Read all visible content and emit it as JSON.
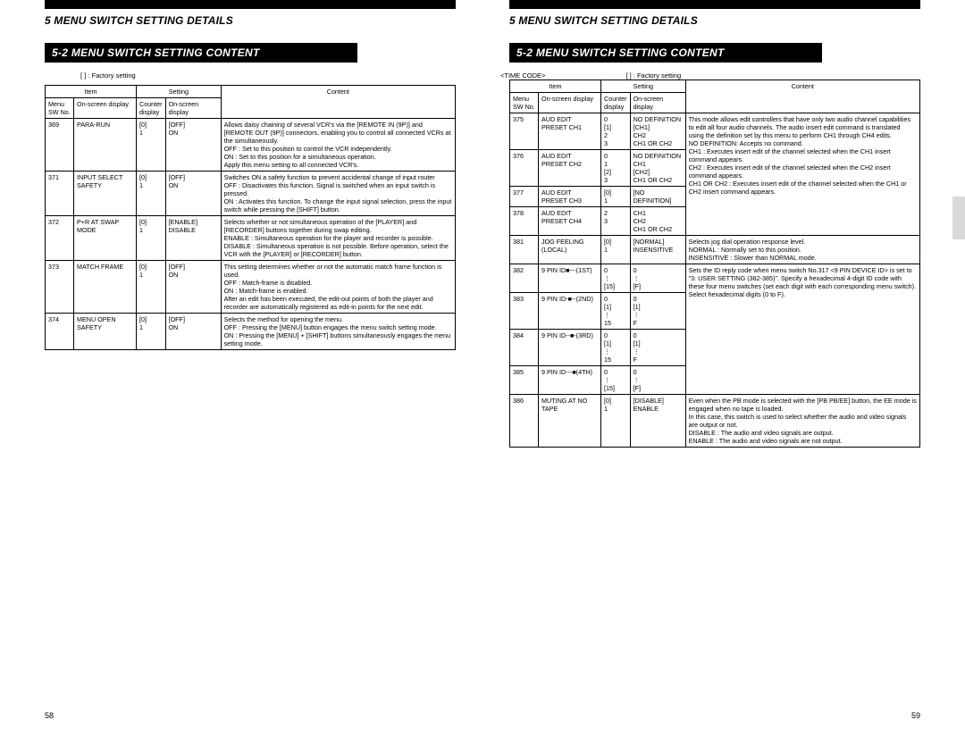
{
  "left": {
    "chapter": "5 MENU SWITCH SETTING DETAILS",
    "section": "5-2 MENU SWITCH SETTING CONTENT",
    "factory_note": "[ ] : Factory setting",
    "headers": {
      "item_grp": "Item",
      "setting_grp": "Setting",
      "menu_sw": "Menu SW No.",
      "onscreen1": "On-screen display",
      "counter": "Counter display",
      "onscreen2": "On-screen display",
      "content": "Content"
    },
    "rows": [
      {
        "no": "369",
        "osd": "PARA-RUN",
        "cnt": "[0]\n1",
        "set": "[OFF]\nON",
        "content": "Allows daisy chaining of several VCR's via the [REMOTE IN (9P)] and [REMOTE OUT (9P)] connectors, enabling you to control all connected VCRs at the simultaneously.\nOFF : Set to this position to control the VCR independently.\nON  : Set to this position for a simultaneous operation.\nApply this menu setting to all connected VCR's."
      },
      {
        "no": "371",
        "osd": "INPUT SELECT SAFETY",
        "cnt": "[0]\n1",
        "set": "[OFF]\nON",
        "content": "Switches ON a safety function to prevent accidental change of input router\nOFF : Disactivates this function.  Signal is switched when an input switch is pressed.\nON  : Activates this function.  To change the input signal selection, press the input switch while pressing the [SHIFT] button."
      },
      {
        "no": "372",
        "osd": "P+R AT SWAP MODE",
        "cnt": "[0]\n1",
        "set": "[ENABLE]\nDISABLE",
        "content": "Selects whether or not simultaneous operation of the [PLAYER] and [RECORDER] buttons together during swap editing.\nENABLE  : Simultaneous operation for the player and recorder is possible.\nDISABLE : Simultaneous operation is not possible. Before operation, select the VCR with the [PLAYER] or [RECORDER] button."
      },
      {
        "no": "373",
        "osd": "MATCH FRAME",
        "cnt": "[0]\n1",
        "set": "[OFF]\nON",
        "content": "This setting determines whether or not the automatic match frame function is used.\nOFF : Match-frame is disabled.\nON  : Match-frame is enabled.\nAfter an edit has been executed, the edit-out points of both the player and recorder are automatically registered as edit-in points for the next edit."
      },
      {
        "no": "374",
        "osd": "MENU OPEN SAFETY",
        "cnt": "[0]\n1",
        "set": "[OFF]\nON",
        "content": "Selects the method for opening the menu.\nOFF : Pressing the [MENU] button engages the menu switch setting mode.\nON  : Pressing the [MENU] + [SHIFT] buttons simultaneously engages the menu setting mode."
      }
    ],
    "page_num": "58"
  },
  "right": {
    "chapter": "5 MENU SWITCH SETTING DETAILS",
    "section": "5-2 MENU SWITCH SETTING CONTENT",
    "timecode": "<TIME CODE>",
    "factory_note": "[ ] : Factory setting",
    "headers": {
      "item_grp": "Item",
      "setting_grp": "Setting",
      "menu_sw": "Menu SW No.",
      "onscreen1": "On-screen display",
      "counter": "Counter display",
      "onscreen2": "On-screen display",
      "content": "Content"
    },
    "rows": [
      {
        "no": "375",
        "osd": "AUD EDIT PRESET CH1",
        "cnt": "0\n[1]\n2\n3",
        "set": "NO DEFINITION\n[CH1]\nCH2\nCH1 OR CH2",
        "content": "This mode allows edit controllers that have only two audio channel capabilities to edit all four audio channels.  The audio insert edit command is translated using the definition set by this menu to perform CH1 through CH4 edits.\nNO DEFINITION: Accepts no command.\nCH1 : Executes insert edit of the channel selected when the CH1 insert command appears.\nCH2 : Executes insert edit of the channel selected when the CH2 insert command appears.\nCH1 OR CH2 : Executes insert edit of the channel selected when the CH1 or CH2 insert command appears.",
        "span": 4
      },
      {
        "no": "376",
        "osd": "AUD EDIT PRESET CH2",
        "cnt": "0\n1\n[2]\n3",
        "set": "NO DEFINITION\nCH1\n[CH2]\nCH1 OR CH2"
      },
      {
        "no": "377",
        "osd": "AUD EDIT PRESET CH3",
        "cnt": "[0]\n1",
        "set": "[NO DEFINITION]"
      },
      {
        "no": "378",
        "osd": "AUD EDIT PRESET CH4",
        "cnt": "2\n3",
        "set": "CH1\nCH2\nCH1 OR CH2"
      },
      {
        "no": "381",
        "osd": "JOG FEELING (LOCAL)",
        "cnt": "[0]\n1",
        "set": "[NORMAL]\nINSENSITIVE",
        "content": "Selects jog dial operation response level.\nNORMAL         : Normally set to this position.\nINSENSITIVE : Slower than NORMAL mode."
      },
      {
        "no": "382",
        "osd": "9 PIN ID■---(1ST)",
        "cnt": "0\n⋮\n[15]",
        "set": "0\n⋮\n[F]",
        "content": "Sets the ID reply code when menu switch No.317 <9 PIN DEVICE ID> is set to \"3: USER SETTING (382-385)\". Specify a hexadecimal 4-digit ID code with these four menu switches (set each digit with each corresponding menu switch). Select hexadecimal digits (0 to F).",
        "span": 4
      },
      {
        "no": "383",
        "osd": "9 PIN ID-■--(2ND)",
        "cnt": "0\n[1]\n⋮\n15",
        "set": "0\n[1]\n⋮\nF"
      },
      {
        "no": "384",
        "osd": "9 PIN ID--■-(3RD)",
        "cnt": "0\n[1]\n⋮\n15",
        "set": "0\n[1]\n⋮\nF"
      },
      {
        "no": "385",
        "osd": "9 PIN ID---■(4TH)",
        "cnt": "0\n⋮\n[15]",
        "set": "0\n⋮\n[F]"
      },
      {
        "no": "386",
        "osd": "MUTING AT NO TAPE",
        "cnt": "[0]\n1",
        "set": "[DISABLE]\nENABLE",
        "content": "Even when the PB mode is selected with the [PB PB/EE] button, the EE mode is engaged when no tape is loaded.\nIn this case, this switch is used to select whether the audio and video signals are output or not.\nDISABLE : The audio and video signals are output.\nENABLE  : The audio and video signals are not output."
      }
    ],
    "page_num": "59"
  }
}
